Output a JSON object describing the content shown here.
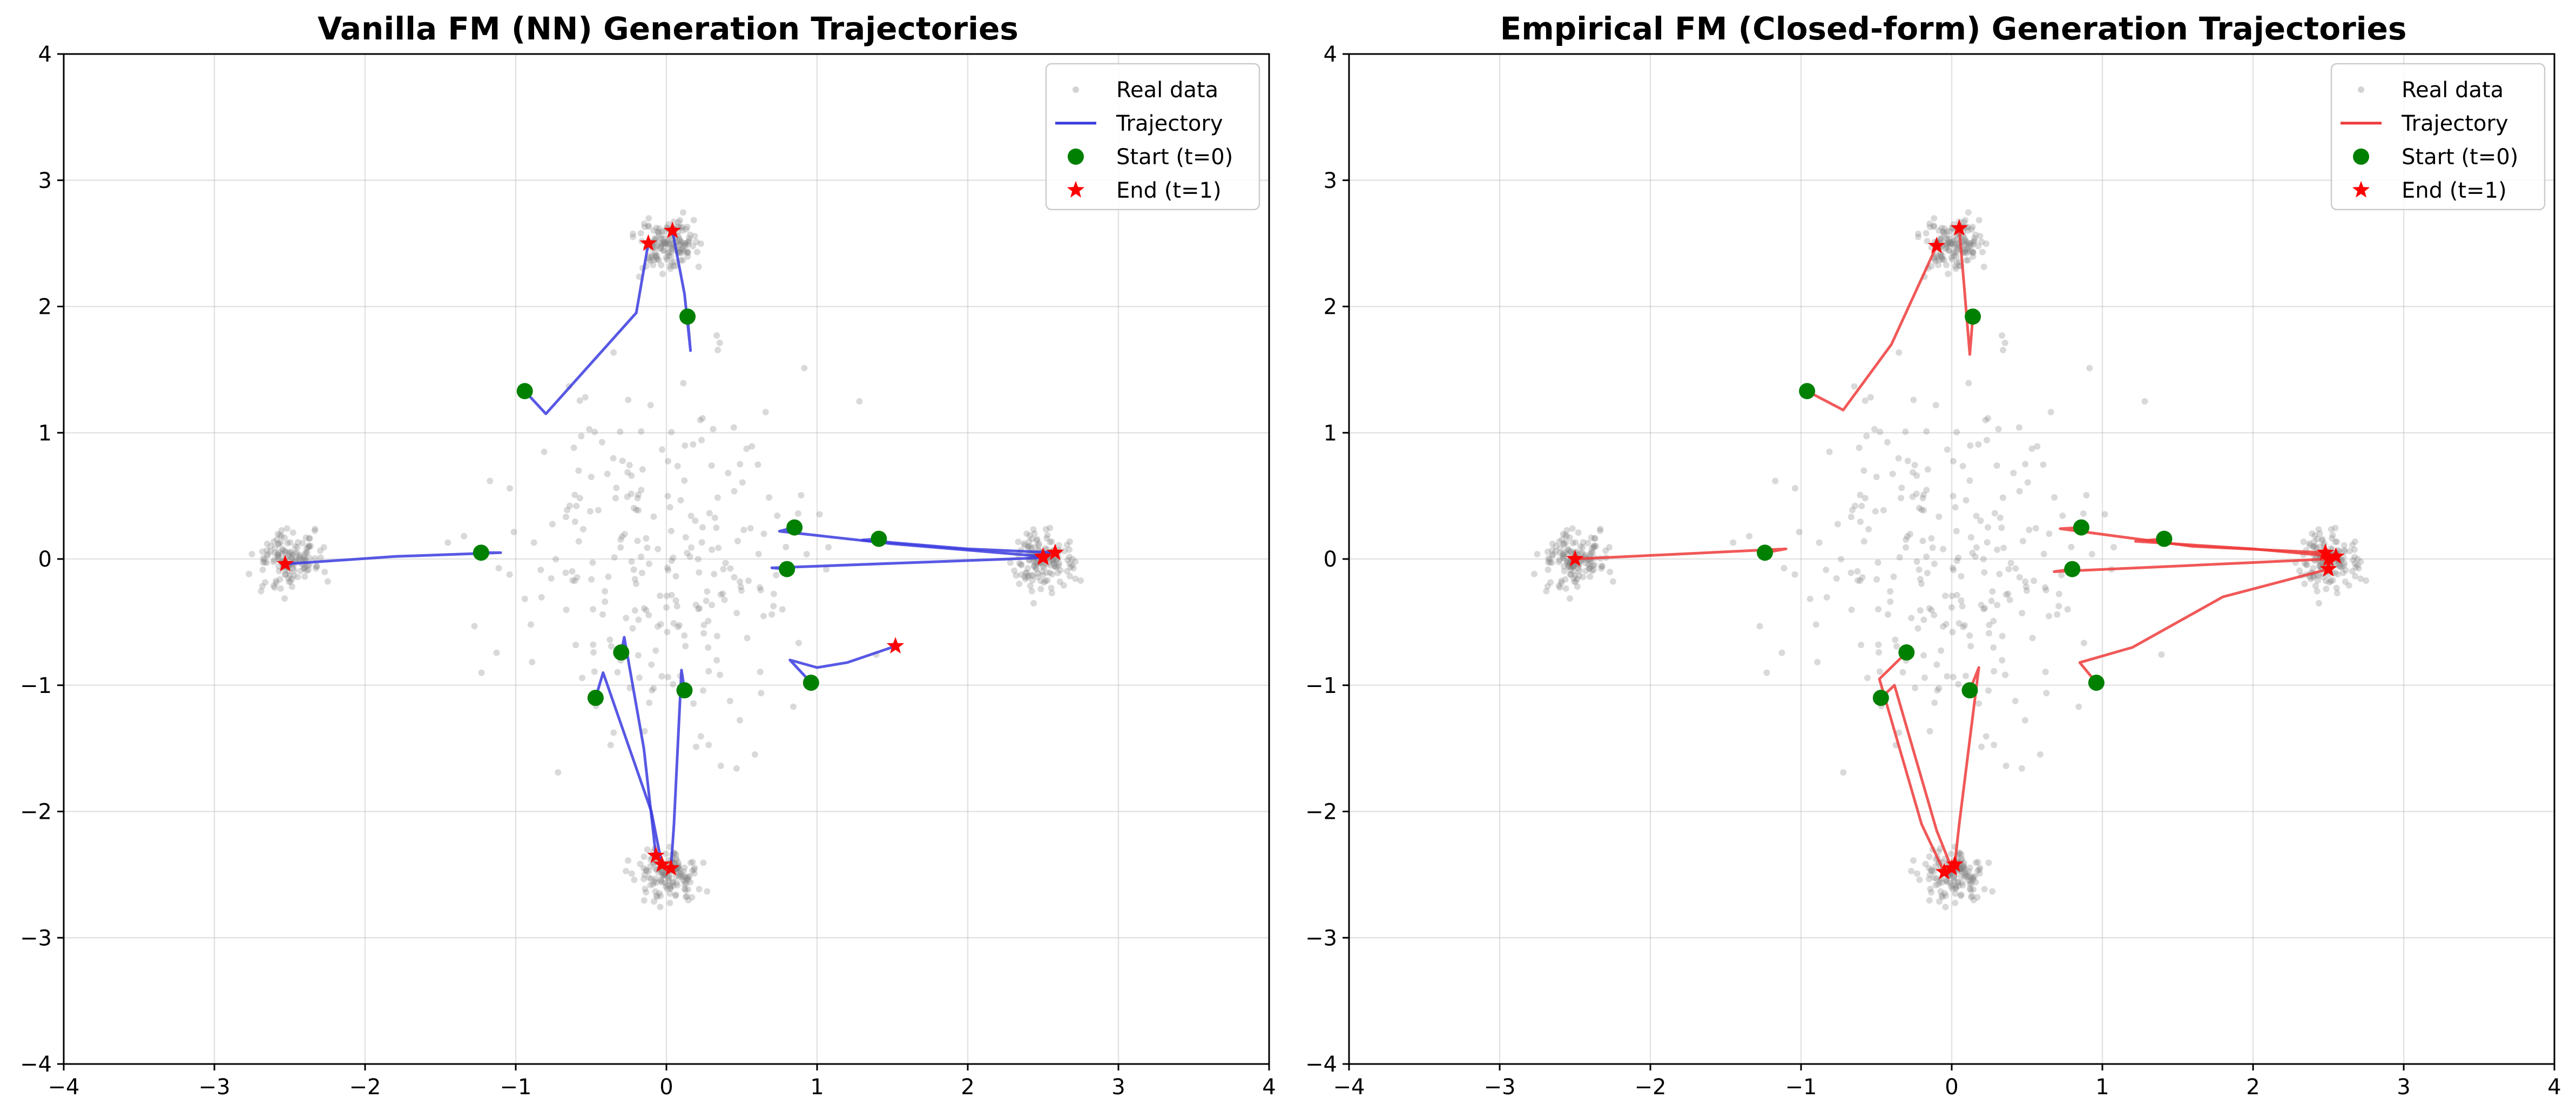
{
  "chart_data": [
    {
      "type": "scatter",
      "title": "Vanilla FM (NN) Generation Trajectories",
      "xlim": [
        -4,
        4
      ],
      "ylim": [
        -4,
        4
      ],
      "xticks": [
        "−4",
        "−3",
        "−2",
        "−1",
        "0",
        "1",
        "2",
        "3",
        "4"
      ],
      "yticks": [
        "−4",
        "−3",
        "−2",
        "−1",
        "0",
        "1",
        "2",
        "3",
        "4"
      ],
      "grid": true,
      "legend_position": "top-right",
      "legend": [
        "Real data",
        "Trajectory",
        "Start (t=0)",
        "End (t=1)"
      ],
      "real_data_color": "#808080",
      "trajectory_color": "#3b3bdf",
      "start_color": "#008000",
      "end_color": "#ff0000",
      "clusters": [
        {
          "name": "top",
          "center": [
            0,
            2.5
          ]
        },
        {
          "name": "bottom",
          "center": [
            0,
            -2.5
          ]
        },
        {
          "name": "left",
          "center": [
            -2.5,
            0
          ]
        },
        {
          "name": "right",
          "center": [
            2.5,
            0
          ]
        }
      ],
      "trajectories": [
        {
          "points": [
            [
              0.14,
              1.92
            ],
            [
              0.16,
              1.65
            ],
            [
              0.12,
              2.1
            ],
            [
              0.08,
              2.35
            ],
            [
              0.04,
              2.6
            ]
          ]
        },
        {
          "points": [
            [
              -0.94,
              1.33
            ],
            [
              -0.8,
              1.15
            ],
            [
              -0.5,
              1.55
            ],
            [
              -0.2,
              1.95
            ],
            [
              -0.12,
              2.5
            ]
          ]
        },
        {
          "points": [
            [
              -1.23,
              0.05
            ],
            [
              -1.1,
              0.05
            ],
            [
              -1.8,
              0.02
            ],
            [
              -2.53,
              -0.04
            ]
          ]
        },
        {
          "points": [
            [
              0.85,
              0.25
            ],
            [
              0.75,
              0.22
            ],
            [
              1.5,
              0.12
            ],
            [
              2.5,
              0.02
            ]
          ]
        },
        {
          "points": [
            [
              1.41,
              0.16
            ],
            [
              1.3,
              0.15
            ],
            [
              2.0,
              0.08
            ],
            [
              2.58,
              0.05
            ]
          ]
        },
        {
          "points": [
            [
              0.8,
              -0.08
            ],
            [
              0.7,
              -0.07
            ],
            [
              1.6,
              -0.03
            ],
            [
              2.5,
              0.01
            ]
          ]
        },
        {
          "points": [
            [
              0.96,
              -0.98
            ],
            [
              0.82,
              -0.8
            ],
            [
              1.0,
              -0.86
            ],
            [
              1.2,
              -0.82
            ],
            [
              1.52,
              -0.69
            ]
          ]
        },
        {
          "points": [
            [
              -0.3,
              -0.74
            ],
            [
              -0.28,
              -0.62
            ],
            [
              -0.15,
              -1.5
            ],
            [
              -0.07,
              -2.35
            ]
          ]
        },
        {
          "points": [
            [
              -0.47,
              -1.1
            ],
            [
              -0.42,
              -0.9
            ],
            [
              -0.1,
              -2.0
            ],
            [
              -0.03,
              -2.42
            ]
          ]
        },
        {
          "points": [
            [
              0.12,
              -1.04
            ],
            [
              0.1,
              -0.88
            ],
            [
              0.05,
              -2.1
            ],
            [
              0.03,
              -2.45
            ]
          ]
        }
      ],
      "starts": [
        [
          0.14,
          1.92
        ],
        [
          -0.94,
          1.33
        ],
        [
          -1.23,
          0.05
        ],
        [
          0.85,
          0.25
        ],
        [
          1.41,
          0.16
        ],
        [
          0.8,
          -0.08
        ],
        [
          0.96,
          -0.98
        ],
        [
          -0.3,
          -0.74
        ],
        [
          -0.47,
          -1.1
        ],
        [
          0.12,
          -1.04
        ]
      ],
      "ends": [
        [
          0.04,
          2.6
        ],
        [
          -0.12,
          2.5
        ],
        [
          -2.53,
          -0.04
        ],
        [
          2.5,
          0.02
        ],
        [
          2.58,
          0.05
        ],
        [
          2.5,
          0.01
        ],
        [
          1.52,
          -0.69
        ],
        [
          -0.07,
          -2.35
        ],
        [
          -0.03,
          -2.42
        ],
        [
          0.03,
          -2.45
        ]
      ]
    },
    {
      "type": "scatter",
      "title": "Empirical FM (Closed-form) Generation Trajectories",
      "xlim": [
        -4,
        4
      ],
      "ylim": [
        -4,
        4
      ],
      "xticks": [
        "−4",
        "−3",
        "−2",
        "−1",
        "0",
        "1",
        "2",
        "3",
        "4"
      ],
      "yticks": [
        "−4",
        "−3",
        "−2",
        "−1",
        "0",
        "1",
        "2",
        "3",
        "4"
      ],
      "grid": true,
      "legend_position": "top-right",
      "legend": [
        "Real data",
        "Trajectory",
        "Start (t=0)",
        "End (t=1)"
      ],
      "real_data_color": "#808080",
      "trajectory_color": "#ee3b3b",
      "start_color": "#008000",
      "end_color": "#ff0000",
      "clusters": [
        {
          "name": "top",
          "center": [
            0,
            2.5
          ]
        },
        {
          "name": "bottom",
          "center": [
            0,
            -2.5
          ]
        },
        {
          "name": "left",
          "center": [
            -2.5,
            0
          ]
        },
        {
          "name": "right",
          "center": [
            2.5,
            0
          ]
        }
      ],
      "trajectories": [
        {
          "points": [
            [
              0.14,
              1.92
            ],
            [
              0.12,
              1.62
            ],
            [
              0.08,
              2.2
            ],
            [
              0.05,
              2.62
            ]
          ]
        },
        {
          "points": [
            [
              -0.96,
              1.33
            ],
            [
              -0.72,
              1.18
            ],
            [
              -0.4,
              1.7
            ],
            [
              -0.1,
              2.48
            ]
          ]
        },
        {
          "points": [
            [
              -1.24,
              0.05
            ],
            [
              -1.1,
              0.08
            ],
            [
              -1.8,
              0.04
            ],
            [
              -2.5,
              0.0
            ]
          ]
        },
        {
          "points": [
            [
              0.86,
              0.25
            ],
            [
              0.72,
              0.24
            ],
            [
              1.6,
              0.1
            ],
            [
              2.48,
              0.05
            ]
          ]
        },
        {
          "points": [
            [
              1.41,
              0.16
            ],
            [
              1.22,
              0.14
            ],
            [
              2.0,
              0.08
            ],
            [
              2.55,
              0.02
            ]
          ]
        },
        {
          "points": [
            [
              0.8,
              -0.08
            ],
            [
              0.68,
              -0.1
            ],
            [
              1.6,
              -0.05
            ],
            [
              2.5,
              0.0
            ]
          ]
        },
        {
          "points": [
            [
              0.96,
              -0.98
            ],
            [
              0.85,
              -0.82
            ],
            [
              1.2,
              -0.7
            ],
            [
              1.8,
              -0.3
            ],
            [
              2.5,
              -0.08
            ]
          ]
        },
        {
          "points": [
            [
              -0.3,
              -0.74
            ],
            [
              -0.48,
              -0.95
            ],
            [
              -0.2,
              -2.1
            ],
            [
              -0.05,
              -2.48
            ]
          ]
        },
        {
          "points": [
            [
              -0.47,
              -1.1
            ],
            [
              -0.38,
              -1.0
            ],
            [
              -0.1,
              -2.15
            ],
            [
              0.0,
              -2.45
            ]
          ]
        },
        {
          "points": [
            [
              0.12,
              -1.04
            ],
            [
              0.18,
              -0.86
            ],
            [
              0.05,
              -2.1
            ],
            [
              0.02,
              -2.42
            ]
          ]
        }
      ],
      "starts": [
        [
          0.14,
          1.92
        ],
        [
          -0.96,
          1.33
        ],
        [
          -1.24,
          0.05
        ],
        [
          0.86,
          0.25
        ],
        [
          1.41,
          0.16
        ],
        [
          0.8,
          -0.08
        ],
        [
          0.96,
          -0.98
        ],
        [
          -0.3,
          -0.74
        ],
        [
          -0.47,
          -1.1
        ],
        [
          0.12,
          -1.04
        ]
      ],
      "ends": [
        [
          0.05,
          2.62
        ],
        [
          -0.1,
          2.48
        ],
        [
          -2.5,
          0.0
        ],
        [
          2.48,
          0.05
        ],
        [
          2.55,
          0.02
        ],
        [
          2.5,
          0.0
        ],
        [
          2.5,
          -0.08
        ],
        [
          -0.05,
          -2.48
        ],
        [
          0.0,
          -2.45
        ],
        [
          0.02,
          -2.42
        ]
      ]
    }
  ]
}
